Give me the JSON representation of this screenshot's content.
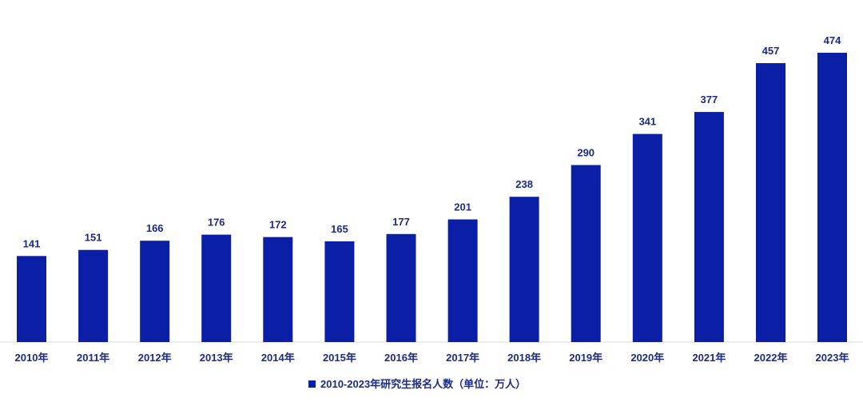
{
  "chart_data": {
    "type": "bar",
    "categories": [
      "2010年",
      "2011年",
      "2012年",
      "2013年",
      "2014年",
      "2015年",
      "2016年",
      "2017年",
      "2018年",
      "2019年",
      "2020年",
      "2021年",
      "2022年",
      "2023年"
    ],
    "series": [
      {
        "name": "2010-2023年研究生报名人数（单位：万人）",
        "values": [
          141,
          151,
          166,
          176,
          172,
          165,
          177,
          201,
          238,
          290,
          341,
          377,
          457,
          474
        ]
      }
    ],
    "ylim": [
      0,
      474
    ],
    "grid": false,
    "legend": "bottom",
    "colors": {
      "bar": "#0a1fa6",
      "text": "#1a2a8c",
      "axis": "#d9d9d9"
    }
  }
}
